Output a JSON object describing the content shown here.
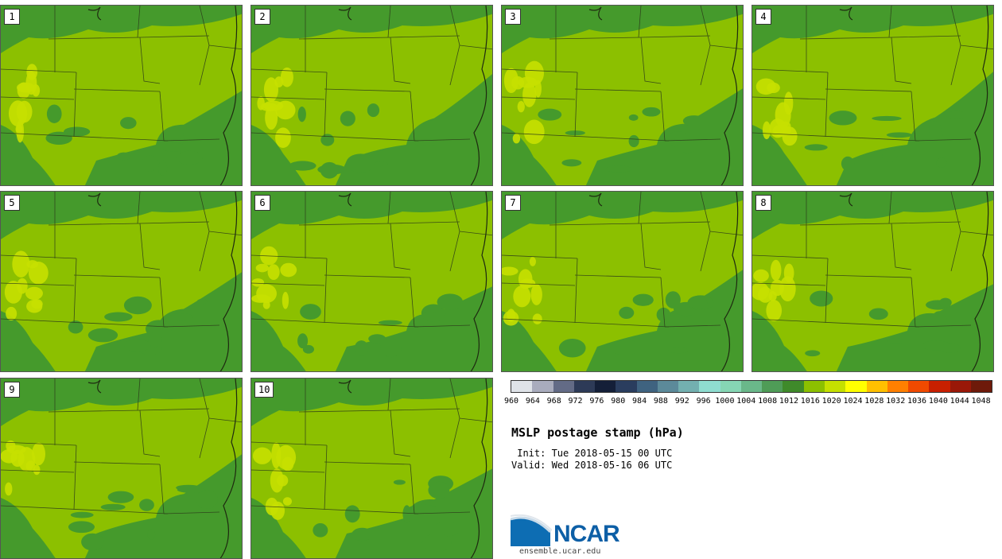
{
  "panels": [
    {
      "label": "1"
    },
    {
      "label": "2"
    },
    {
      "label": "3"
    },
    {
      "label": "4"
    },
    {
      "label": "5"
    },
    {
      "label": "6"
    },
    {
      "label": "7"
    },
    {
      "label": "8"
    },
    {
      "label": "9"
    },
    {
      "label": "10"
    }
  ],
  "colorbar": {
    "levels": [
      "960",
      "964",
      "968",
      "972",
      "976",
      "980",
      "984",
      "988",
      "992",
      "996",
      "1000",
      "1004",
      "1008",
      "1012",
      "1016",
      "1020",
      "1024",
      "1028",
      "1032",
      "1036",
      "1040",
      "1044",
      "1048"
    ],
    "colors": [
      "#dfe3e8",
      "#a9acbd",
      "#636b86",
      "#2d3a57",
      "#141f38",
      "#2a3d5e",
      "#3f6380",
      "#5c8a9a",
      "#73b0b0",
      "#8fddd0",
      "#86d6b4",
      "#6ab88a",
      "#4f9c57",
      "#3f8a2a",
      "#8cc000",
      "#c5e000",
      "#ffff00",
      "#ffc000",
      "#ff8000",
      "#f04a00",
      "#c82000",
      "#9a1808",
      "#6e1a0a"
    ]
  },
  "map_colors": {
    "base": "#8cc000",
    "dark": "#459a2c",
    "light": "#c6e000"
  },
  "title": "MSLP postage stamp (hPa)",
  "init_line": " Init: Tue 2018-05-15 00 UTC",
  "valid_line": "Valid: Wed 2018-05-16 06 UTC",
  "logo": {
    "text": "NCAR",
    "url": "ensemble.ucar.edu",
    "icon": "ncar-logo-icon"
  }
}
